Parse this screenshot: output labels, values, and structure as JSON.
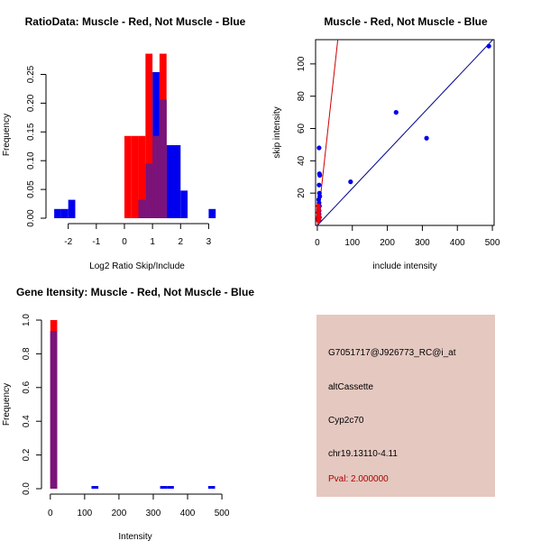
{
  "colors": {
    "muscle": "#ff0000",
    "not_muscle": "#0000ee",
    "overlap": "#7a137a",
    "panel_bg": "#e5c8c0",
    "pval": "#aa0000",
    "fit_line": "#000088",
    "ratio_line": "#cc0000"
  },
  "chart_data": [
    {
      "id": "ratio_hist",
      "type": "bar",
      "title": "RatioData: Muscle - Red, Not Muscle - Blue",
      "xlabel": "Log2 Ratio Skip/Include",
      "ylabel": "Frequency",
      "xlim": [
        -2.6,
        3.5
      ],
      "ylim": [
        0,
        0.29
      ],
      "xticks": [
        -2,
        -1,
        0,
        1,
        2,
        3
      ],
      "yticks": [
        0.0,
        0.05,
        0.1,
        0.15,
        0.2,
        0.25
      ],
      "ytick_labels": [
        "0.00",
        "0.05",
        "0.10",
        "0.15",
        "0.20",
        "0.25"
      ],
      "bin_width": 0.25,
      "series": [
        {
          "name": "Not Muscle",
          "color_key": "not_muscle",
          "bins": [
            [
              -2.5,
              0.016
            ],
            [
              -2.25,
              0.016
            ],
            [
              -2.0,
              0.032
            ],
            [
              0.5,
              0.032
            ],
            [
              0.75,
              0.095
            ],
            [
              1.0,
              0.254
            ],
            [
              1.25,
              0.206
            ],
            [
              1.5,
              0.127
            ],
            [
              1.75,
              0.127
            ],
            [
              2.0,
              0.048
            ],
            [
              3.0,
              0.016
            ]
          ]
        },
        {
          "name": "Muscle",
          "color_key": "muscle",
          "bins": [
            [
              0.0,
              0.143
            ],
            [
              0.25,
              0.143
            ],
            [
              0.5,
              0.143
            ],
            [
              0.75,
              0.286
            ],
            [
              1.0,
              0.143
            ],
            [
              1.25,
              0.286
            ]
          ]
        }
      ]
    },
    {
      "id": "scatter",
      "type": "scatter",
      "title": "Muscle - Red, Not Muscle - Blue",
      "xlabel": "include intensity",
      "ylabel": "skip intensity",
      "xlim": [
        -5,
        505
      ],
      "ylim": [
        0,
        115
      ],
      "xticks": [
        0,
        100,
        200,
        300,
        400,
        500
      ],
      "yticks": [
        20,
        40,
        60,
        80,
        100
      ],
      "blue_points": [
        [
          490,
          111
        ],
        [
          225,
          70
        ],
        [
          312,
          54
        ],
        [
          95,
          27
        ],
        [
          5,
          48
        ],
        [
          6,
          32
        ],
        [
          7,
          31
        ],
        [
          5,
          25
        ],
        [
          6,
          20
        ],
        [
          7,
          18
        ],
        [
          4,
          16
        ],
        [
          5,
          14
        ],
        [
          6,
          12
        ],
        [
          4,
          10
        ],
        [
          5,
          9
        ],
        [
          3,
          8
        ],
        [
          5,
          7
        ],
        [
          4,
          6
        ],
        [
          6,
          5
        ],
        [
          3,
          4
        ],
        [
          5,
          3
        ]
      ],
      "red_points": [
        [
          3,
          12
        ],
        [
          4,
          10
        ],
        [
          3,
          8
        ],
        [
          4,
          6
        ],
        [
          3,
          5
        ],
        [
          4,
          4
        ],
        [
          3,
          3
        ]
      ],
      "blue_line": [
        [
          0,
          0
        ],
        [
          510,
          117
        ]
      ],
      "red_line": [
        [
          0,
          0
        ],
        [
          62,
          122
        ]
      ]
    },
    {
      "id": "intensity_hist",
      "type": "bar",
      "title": "Gene Itensity: Muscle - Red, Not Muscle - Blue",
      "xlabel": "Intensity",
      "ylabel": "Frequency",
      "xlim": [
        -10,
        505
      ],
      "ylim": [
        0,
        1.0
      ],
      "xticks": [
        0,
        100,
        200,
        300,
        400,
        500
      ],
      "yticks": [
        0.0,
        0.2,
        0.4,
        0.6,
        0.8,
        1.0
      ],
      "ytick_labels": [
        "0.0",
        "0.2",
        "0.4",
        "0.6",
        "0.8",
        "1.0"
      ],
      "bin_width": 20,
      "series": [
        {
          "name": "Not Muscle",
          "color_key": "not_muscle",
          "bins": [
            [
              0,
              0.935
            ],
            [
              120,
              0.016
            ],
            [
              320,
              0.016
            ],
            [
              340,
              0.016
            ],
            [
              460,
              0.016
            ]
          ]
        },
        {
          "name": "Muscle",
          "color_key": "muscle",
          "bins": [
            [
              0,
              1.0
            ]
          ]
        }
      ]
    }
  ],
  "info": {
    "probe_id": "G7051717@J926773_RC@i_at",
    "event_type": "altCassette",
    "gene": "Cyp2c70",
    "location": "chr19.13110-4.11",
    "pval": "Pval: 2.000000"
  }
}
